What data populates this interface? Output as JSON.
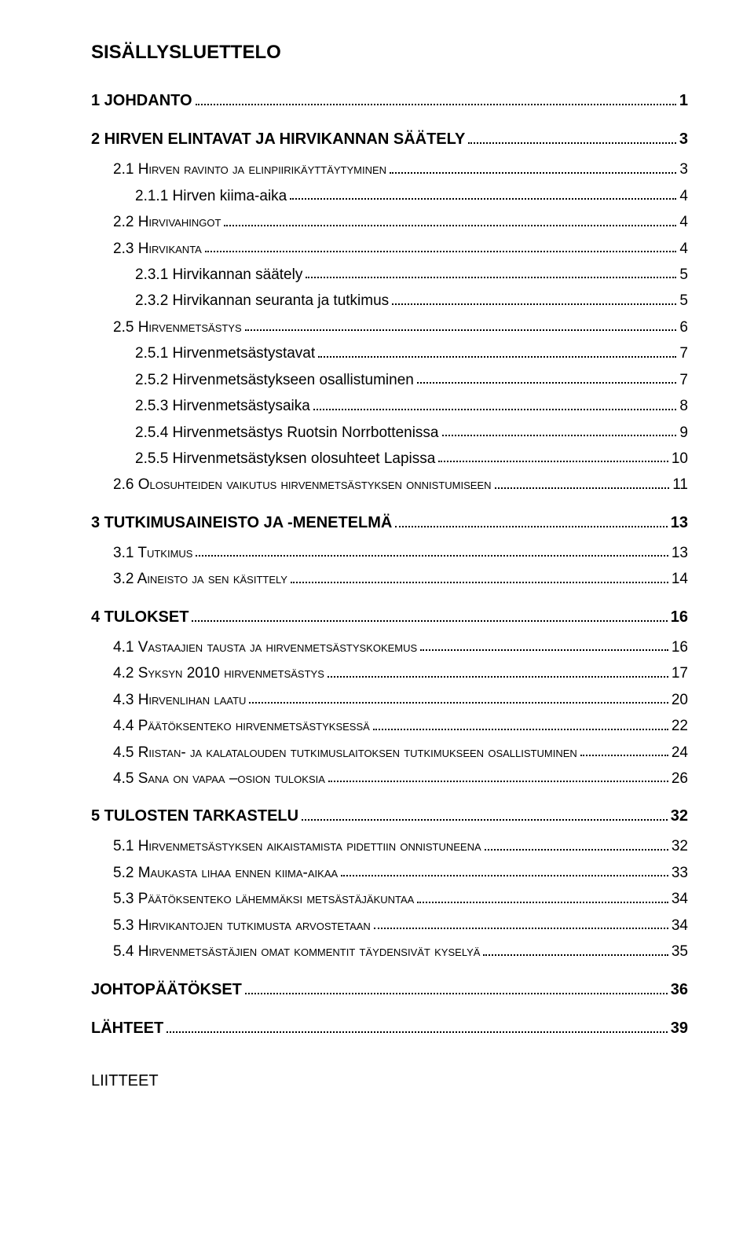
{
  "title": "SISÄLLYSLUETTELO",
  "entries": [
    {
      "level": 1,
      "label": "1 JOHDANTO",
      "page": "1",
      "caps": false
    },
    {
      "level": 1,
      "label": "2 HIRVEN ELINTAVAT JA HIRVIKANNAN SÄÄTELY",
      "page": "3",
      "caps": false
    },
    {
      "level": 2,
      "label": "2.1 Hirven ravinto ja elinpiirikäyttäytyminen",
      "page": "3",
      "caps": true
    },
    {
      "level": 3,
      "label": "2.1.1 Hirven kiima-aika",
      "page": "4",
      "caps": false
    },
    {
      "level": 2,
      "label": "2.2 Hirvivahingot",
      "page": "4",
      "caps": true
    },
    {
      "level": 2,
      "label": "2.3 Hirvikanta",
      "page": "4",
      "caps": true
    },
    {
      "level": 3,
      "label": "2.3.1 Hirvikannan säätely",
      "page": "5",
      "caps": false
    },
    {
      "level": 3,
      "label": "2.3.2 Hirvikannan seuranta ja tutkimus",
      "page": "5",
      "caps": false
    },
    {
      "level": 2,
      "label": "2.5 Hirvenmetsästys",
      "page": "6",
      "caps": true
    },
    {
      "level": 3,
      "label": "2.5.1 Hirvenmetsästystavat",
      "page": "7",
      "caps": false
    },
    {
      "level": 3,
      "label": "2.5.2 Hirvenmetsästykseen osallistuminen",
      "page": "7",
      "caps": false
    },
    {
      "level": 3,
      "label": "2.5.3 Hirvenmetsästysaika",
      "page": "8",
      "caps": false
    },
    {
      "level": 3,
      "label": "2.5.4 Hirvenmetsästys Ruotsin Norrbottenissa",
      "page": "9",
      "caps": false
    },
    {
      "level": 3,
      "label": "2.5.5 Hirvenmetsästyksen olosuhteet Lapissa",
      "page": "10",
      "caps": false
    },
    {
      "level": 2,
      "label": "2.6 Olosuhteiden vaikutus hirvenmetsästyksen onnistumiseen",
      "page": "11",
      "caps": true
    },
    {
      "level": 1,
      "label": "3 TUTKIMUSAINEISTO JA -MENETELMÄ",
      "page": "13",
      "caps": false
    },
    {
      "level": 2,
      "label": "3.1 Tutkimus",
      "page": "13",
      "caps": true
    },
    {
      "level": 2,
      "label": "3.2 Aineisto ja sen käsittely",
      "page": "14",
      "caps": true
    },
    {
      "level": 1,
      "label": "4 TULOKSET",
      "page": "16",
      "caps": false
    },
    {
      "level": 2,
      "label": "4.1 Vastaajien tausta ja hirvenmetsästyskokemus",
      "page": "16",
      "caps": true
    },
    {
      "level": 2,
      "label": "4.2 Syksyn 2010 hirvenmetsästys",
      "page": "17",
      "caps": true
    },
    {
      "level": 2,
      "label": "4.3 Hirvenlihan laatu",
      "page": "20",
      "caps": true
    },
    {
      "level": 2,
      "label": "4.4 Päätöksenteko hirvenmetsästyksessä",
      "page": "22",
      "caps": true
    },
    {
      "level": 2,
      "label": "4.5 Riistan- ja kalatalouden tutkimuslaitoksen tutkimukseen osallistuminen",
      "page": "24",
      "caps": true
    },
    {
      "level": 2,
      "label": "4.5 Sana on vapaa –osion tuloksia",
      "page": "26",
      "caps": true
    },
    {
      "level": 1,
      "label": "5 TULOSTEN TARKASTELU",
      "page": "32",
      "caps": false
    },
    {
      "level": 2,
      "label": "5.1 Hirvenmetsästyksen aikaistamista pidettiin onnistuneena",
      "page": "32",
      "caps": true
    },
    {
      "level": 2,
      "label": "5.2 Maukasta lihaa ennen kiima-aikaa",
      "page": "33",
      "caps": true
    },
    {
      "level": 2,
      "label": "5.3 Päätöksenteko lähemmäksi metsästäjäkuntaa",
      "page": "34",
      "caps": true
    },
    {
      "level": 2,
      "label": "5.3 Hirvikantojen tutkimusta arvostetaan",
      "page": "34",
      "caps": true
    },
    {
      "level": 2,
      "label": "5.4 Hirvenmetsästäjien omat kommentit täydensivät kyselyä",
      "page": "35",
      "caps": true
    },
    {
      "level": 1,
      "label": "JOHTOPÄÄTÖKSET",
      "page": "36",
      "caps": false
    },
    {
      "level": 1,
      "label": "LÄHTEET",
      "page": "39",
      "caps": false
    }
  ],
  "appendix": "LIITTEET"
}
